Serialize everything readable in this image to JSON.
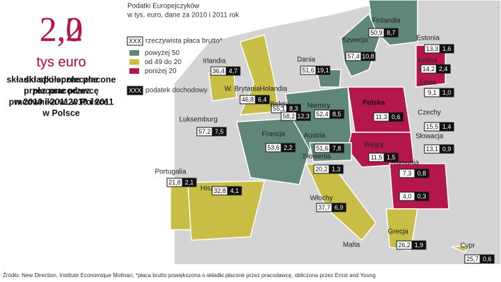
{
  "left": {
    "stats": [
      {
        "value": "2,0",
        "unit": "tys euro",
        "lines": [
          "składki społeczne",
          "płacone przez",
          "pracownika w 2010 i 2011",
          "w Polsce"
        ]
      },
      {
        "value": "2,2",
        "unit": "tys euro",
        "lines": [
          "składki społeczne płacone",
          "przez pracodawcę",
          "w 2010 i 2011 w Polsce"
        ]
      }
    ]
  },
  "header": {
    "title": "Podatki Europejczyków",
    "subtitle": "w tys. euro, dane za 2010 i 2011 rok"
  },
  "legend": {
    "wage": {
      "sample": "XXX",
      "label": "rzeczywista płaca brutto*"
    },
    "bands": [
      {
        "label": "powyżej 50",
        "color": "#5f8676"
      },
      {
        "label": "od 49 do 20",
        "color": "#c8bd45"
      },
      {
        "label": "poniżej 20",
        "color": "#b3174c"
      }
    ],
    "tax": {
      "sample": "XXX",
      "label": "podatek dochodowy"
    }
  },
  "countries": [
    {
      "name": "Finlandia",
      "wage": "50,9",
      "tax": "8,7"
    },
    {
      "name": "Szwecja",
      "wage": "57,4",
      "tax": "10,8"
    },
    {
      "name": "Estonia",
      "wage": "13,3",
      "tax": "1,6"
    },
    {
      "name": "Łotwa",
      "wage": "14,2",
      "tax": "2,4"
    },
    {
      "name": "Litwa",
      "wage": "9,1",
      "tax": "1,0"
    },
    {
      "name": "Dania",
      "wage": "51,6",
      "tax": "19,1"
    },
    {
      "name": "Irlandia",
      "wage": "36,4",
      "tax": "4,7"
    },
    {
      "name": "Holandia",
      "wage": "55,1",
      "tax": "8,3"
    },
    {
      "name": "W. Brytania",
      "wage": "46,8",
      "tax": "6,4"
    },
    {
      "name": "Belgia",
      "wage": "58,2",
      "tax": "12,3"
    },
    {
      "name": "Niemcy",
      "wage": "52,4",
      "tax": "8,5"
    },
    {
      "name": "Polska",
      "wage": "11,3",
      "tax": "0,6"
    },
    {
      "name": "Czechy",
      "wage": "15,5",
      "tax": "1,4"
    },
    {
      "name": "Słowacja",
      "wage": "13,1",
      "tax": "0,9"
    },
    {
      "name": "Luksemburg",
      "wage": "57,2",
      "tax": "7,5"
    },
    {
      "name": "Francja",
      "wage": "53,6",
      "tax": "2,2"
    },
    {
      "name": "Austria",
      "wage": "51,6",
      "tax": "7,8"
    },
    {
      "name": "Węgry",
      "wage": "11,5",
      "tax": "1,5"
    },
    {
      "name": "Słowenia",
      "wage": "20,2",
      "tax": "1,3"
    },
    {
      "name": "Rumunia",
      "wage": "7,3",
      "tax": "0,8"
    },
    {
      "wage": "4,0",
      "tax": "0,3"
    },
    {
      "name": "Portugalia",
      "wage": "21,8",
      "tax": "2,1"
    },
    {
      "name": "Hiszpania",
      "wage": "32,8",
      "tax": "4,1"
    },
    {
      "name": "Włochy",
      "wage": "37,7",
      "tax": "6,9"
    },
    {
      "name": "Malta"
    },
    {
      "name": "Grecja",
      "wage": "26,2",
      "tax": "1,9"
    },
    {
      "name": "Cypr",
      "wage": "25,7",
      "tax": "0,6"
    }
  ],
  "source": "Źródło: New Direction, Institute Economique Molinari, *płaca brutto powiększona o składki płacone przez pracodawcę, obliczona przez Ernst and Young"
}
